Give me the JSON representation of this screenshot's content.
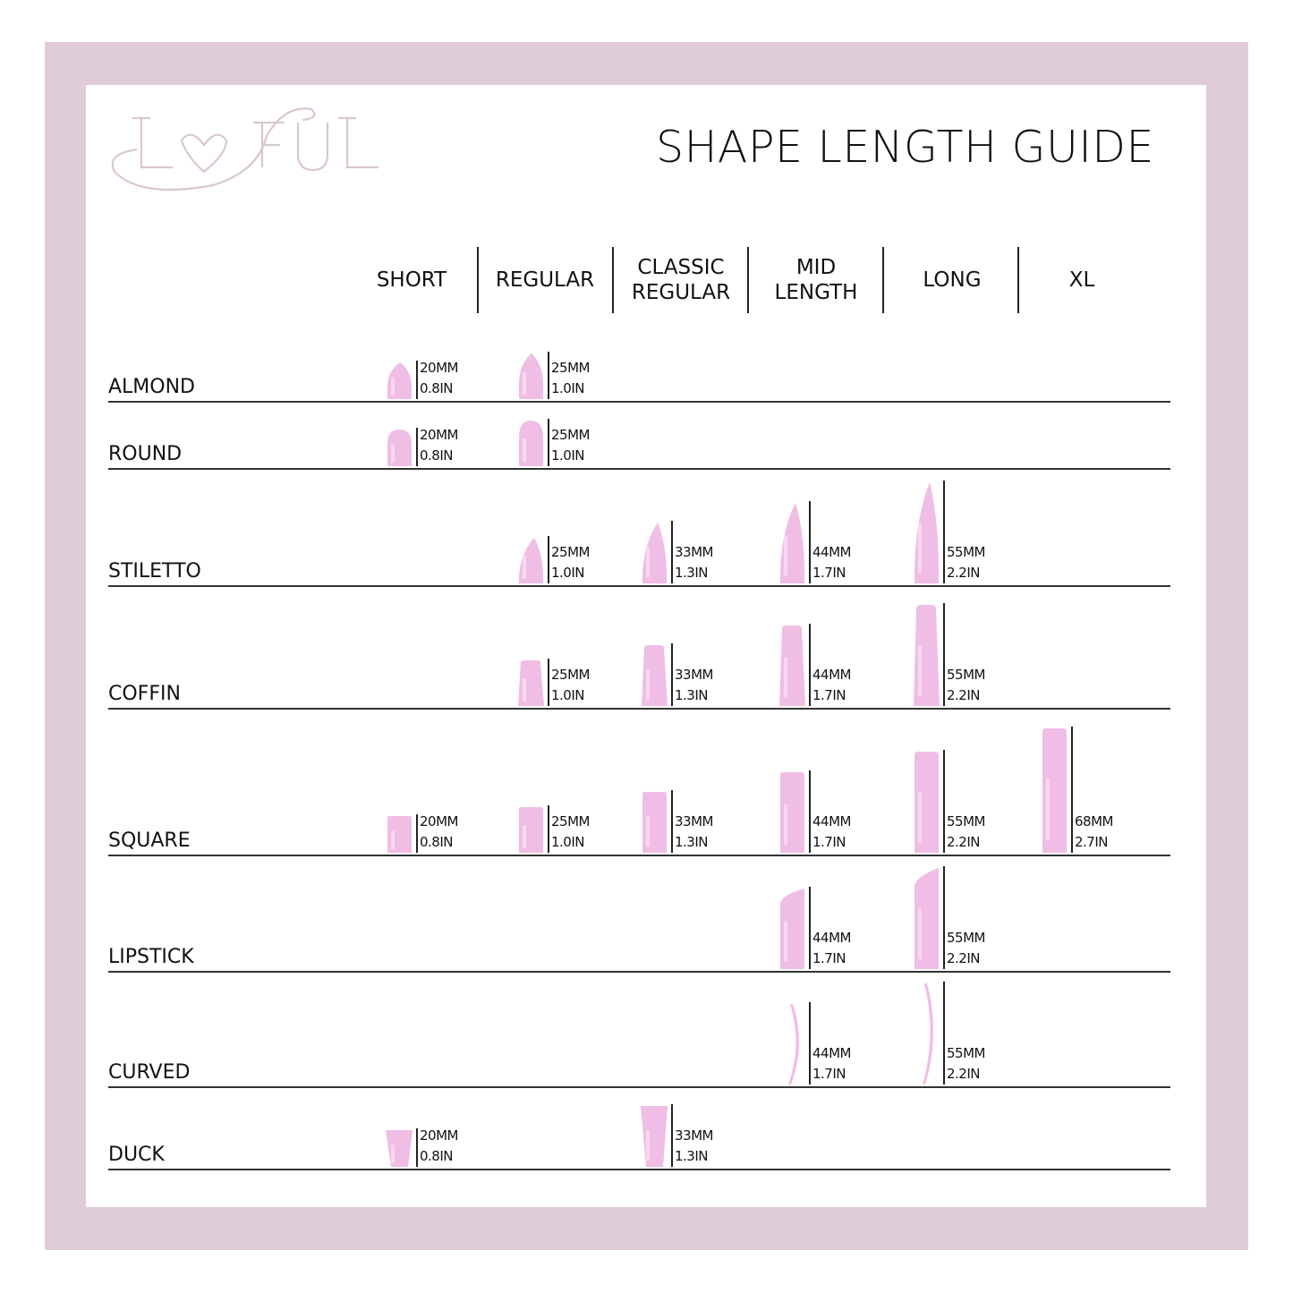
{
  "brand": {
    "logo_text": "LOVFUL",
    "color": "#d9c6d3"
  },
  "title": "SHAPE LENGTH GUIDE",
  "colors": {
    "frame": "#e0ccd9",
    "nail": "#f0bde4",
    "nail_highlight": "#fbe4f5"
  },
  "columns": [
    "SHORT",
    "REGULAR",
    "CLASSIC\nREGULAR",
    "MID\nLENGTH",
    "LONG",
    "XL"
  ],
  "rows": [
    {
      "shape": "ALMOND",
      "entries": [
        {
          "col": 0,
          "mm": "20MM",
          "in": "0.8IN"
        },
        {
          "col": 1,
          "mm": "25MM",
          "in": "1.0IN"
        }
      ]
    },
    {
      "shape": "ROUND",
      "entries": [
        {
          "col": 0,
          "mm": "20MM",
          "in": "0.8IN"
        },
        {
          "col": 1,
          "mm": "25MM",
          "in": "1.0IN"
        }
      ]
    },
    {
      "shape": "STILETTO",
      "entries": [
        {
          "col": 1,
          "mm": "25MM",
          "in": "1.0IN"
        },
        {
          "col": 2,
          "mm": "33MM",
          "in": "1.3IN"
        },
        {
          "col": 3,
          "mm": "44MM",
          "in": "1.7IN"
        },
        {
          "col": 4,
          "mm": "55MM",
          "in": "2.2IN"
        }
      ]
    },
    {
      "shape": "COFFIN",
      "entries": [
        {
          "col": 1,
          "mm": "25MM",
          "in": "1.0IN"
        },
        {
          "col": 2,
          "mm": "33MM",
          "in": "1.3IN"
        },
        {
          "col": 3,
          "mm": "44MM",
          "in": "1.7IN"
        },
        {
          "col": 4,
          "mm": "55MM",
          "in": "2.2IN"
        }
      ]
    },
    {
      "shape": "SQUARE",
      "entries": [
        {
          "col": 0,
          "mm": "20MM",
          "in": "0.8IN"
        },
        {
          "col": 1,
          "mm": "25MM",
          "in": "1.0IN"
        },
        {
          "col": 2,
          "mm": "33MM",
          "in": "1.3IN"
        },
        {
          "col": 3,
          "mm": "44MM",
          "in": "1.7IN"
        },
        {
          "col": 4,
          "mm": "55MM",
          "in": "2.2IN"
        },
        {
          "col": 5,
          "mm": "68MM",
          "in": "2.7IN"
        }
      ]
    },
    {
      "shape": "LIPSTICK",
      "entries": [
        {
          "col": 3,
          "mm": "44MM",
          "in": "1.7IN"
        },
        {
          "col": 4,
          "mm": "55MM",
          "in": "2.2IN"
        }
      ]
    },
    {
      "shape": "CURVED",
      "entries": [
        {
          "col": 3,
          "mm": "44MM",
          "in": "1.7IN"
        },
        {
          "col": 4,
          "mm": "55MM",
          "in": "2.2IN"
        }
      ]
    },
    {
      "shape": "DUCK",
      "entries": [
        {
          "col": 0,
          "mm": "20MM",
          "in": "0.8IN"
        },
        {
          "col": 2,
          "mm": "33MM",
          "in": "1.3IN"
        }
      ]
    }
  ]
}
